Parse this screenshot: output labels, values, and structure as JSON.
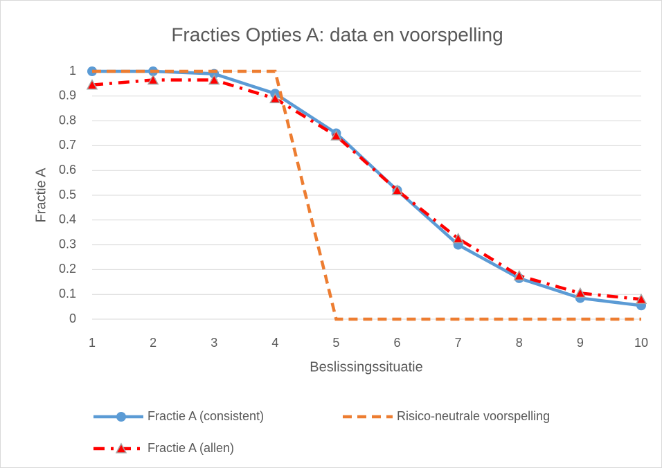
{
  "chart_data": {
    "type": "line",
    "title": "Fracties Opties A: data en voorspelling",
    "x_label": "Beslissingssituatie",
    "y_label": "Fractie A",
    "x": [
      1,
      2,
      3,
      4,
      5,
      6,
      7,
      8,
      9,
      10
    ],
    "xlim": [
      1,
      10
    ],
    "xticks": [
      1,
      2,
      3,
      4,
      5,
      6,
      7,
      8,
      9,
      10
    ],
    "ylim": [
      0,
      1
    ],
    "yticks": [
      0,
      0.1,
      0.2,
      0.3,
      0.4,
      0.5,
      0.6,
      0.7,
      0.8,
      0.9,
      1
    ],
    "grid": true,
    "series": [
      {
        "name": "Fractie A (consistent)",
        "color": "#5b9bd5",
        "dash": "solid",
        "marker": "circle",
        "values": [
          1,
          1,
          0.99,
          0.91,
          0.75,
          0.52,
          0.3,
          0.165,
          0.085,
          0.055
        ]
      },
      {
        "name": "Risico-neutrale voorspelling",
        "color": "#ed7d31",
        "dash": "dashed",
        "marker": "none",
        "values": [
          1,
          1,
          1,
          1,
          0,
          0,
          0,
          0,
          0,
          0
        ]
      },
      {
        "name": "Fractie A (allen)",
        "color": "#ff0000",
        "dash": "dashdot",
        "marker": "triangle",
        "values": [
          0.945,
          0.965,
          0.965,
          0.89,
          0.74,
          0.52,
          0.325,
          0.175,
          0.105,
          0.08
        ]
      }
    ]
  }
}
